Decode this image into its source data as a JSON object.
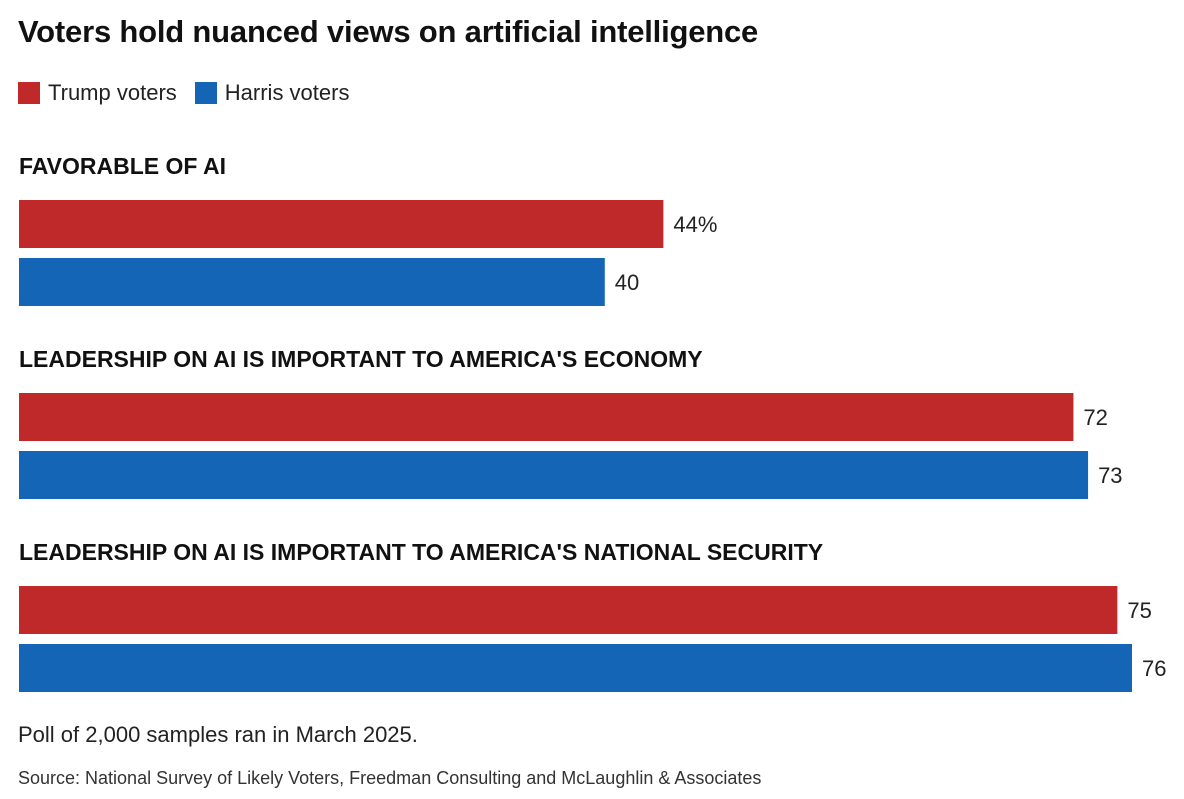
{
  "header": {
    "title": "Voters hold nuanced views on artificial intelligence"
  },
  "legend": [
    {
      "label": "Trump voters",
      "color": "#c0292a"
    },
    {
      "label": "Harris voters",
      "color": "#1565b7"
    }
  ],
  "chart_data": {
    "type": "bar",
    "orientation": "horizontal",
    "unit": "%",
    "xlim": [
      0,
      76
    ],
    "grid": false,
    "legend_placement": "top-left",
    "groups": [
      {
        "label": "FAVORABLE OF AI",
        "values": [
          44,
          40
        ],
        "value_labels": [
          "44%",
          "40"
        ]
      },
      {
        "label": "LEADERSHIP ON AI IS IMPORTANT TO AMERICA'S ECONOMY",
        "values": [
          72,
          73
        ],
        "value_labels": [
          "72",
          "73"
        ]
      },
      {
        "label": "LEADERSHIP ON AI IS IMPORTANT TO AMERICA'S NATIONAL SECURITY",
        "values": [
          75,
          76
        ],
        "value_labels": [
          "75",
          "76"
        ]
      }
    ],
    "series": [
      {
        "name": "Trump voters",
        "color": "#c0292a"
      },
      {
        "name": "Harris voters",
        "color": "#1565b7"
      }
    ]
  },
  "footer": {
    "note": "Poll of 2,000 samples ran in March 2025.",
    "source": "Source: National Survey of Likely Voters, Freedman Consulting and McLaughlin & Associates"
  }
}
